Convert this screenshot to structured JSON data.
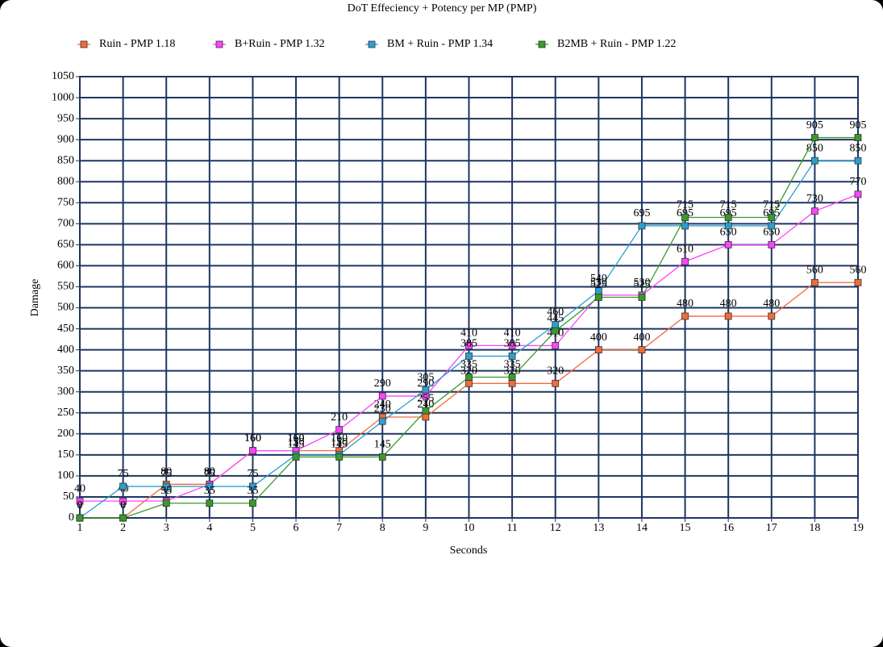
{
  "chart_data": {
    "type": "line",
    "title": "DoT Effeciency + Potency per MP (PMP)",
    "x_label": "Seconds",
    "y_label": "Damage",
    "x": [
      1,
      2,
      3,
      4,
      5,
      6,
      7,
      8,
      9,
      10,
      11,
      12,
      13,
      14,
      15,
      16,
      17,
      18,
      19
    ],
    "xlim": [
      1,
      19
    ],
    "xticks": [
      1,
      2,
      3,
      4,
      5,
      6,
      7,
      8,
      9,
      10,
      11,
      12,
      13,
      14,
      15,
      16,
      17,
      18,
      19
    ],
    "ylim": [
      0,
      1050
    ],
    "yticks": [
      0,
      50,
      100,
      150,
      200,
      250,
      300,
      350,
      400,
      450,
      500,
      550,
      600,
      650,
      700,
      750,
      800,
      850,
      900,
      950,
      1000,
      1050
    ],
    "grid": true,
    "legend": "top",
    "series": [
      {
        "name": "Ruin - PMP 1.18",
        "color": "#f26b3a",
        "values": [
          0,
          0,
          80,
          80,
          160,
          160,
          160,
          240,
          240,
          320,
          320,
          320,
          400,
          400,
          480,
          480,
          480,
          560,
          560
        ]
      },
      {
        "name": "B+Ruin - PMP 1.32",
        "color": "#ff44ff",
        "values": [
          40,
          40,
          40,
          80,
          160,
          160,
          210,
          290,
          290,
          410,
          410,
          410,
          530,
          530,
          610,
          650,
          650,
          730,
          770
        ]
      },
      {
        "name": "BM + Ruin - PMP 1.34",
        "color": "#2b9fd0",
        "values": [
          0,
          75,
          75,
          75,
          75,
          150,
          150,
          230,
          305,
          385,
          385,
          460,
          540,
          695,
          695,
          695,
          695,
          850,
          850
        ]
      },
      {
        "name": "B2MB + Ruin - PMP 1.22",
        "color": "#3a9a2a",
        "values": [
          0,
          0,
          35,
          35,
          35,
          145,
          145,
          145,
          255,
          335,
          335,
          445,
          525,
          525,
          715,
          715,
          715,
          905,
          905
        ]
      }
    ]
  }
}
